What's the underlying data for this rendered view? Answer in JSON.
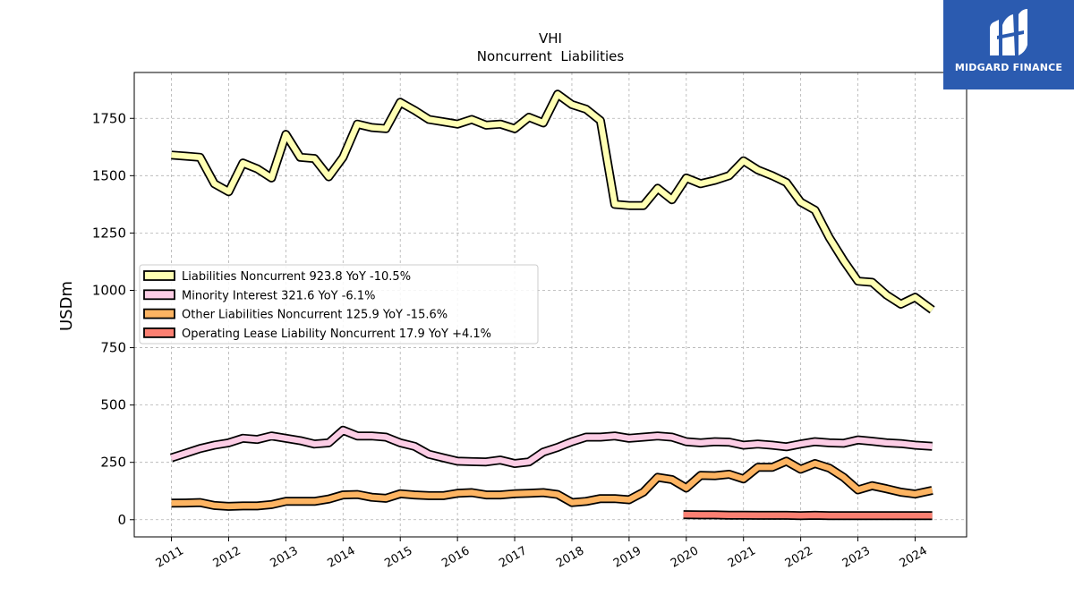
{
  "brand": {
    "name": "MIDGARD FINANCE",
    "background": "#2b5bb0"
  },
  "chart_data": {
    "type": "line",
    "title": "VHI",
    "subtitle": "Noncurrent  Liabilities",
    "xlabel": "",
    "ylabel": "USDm",
    "ylim": [
      -75,
      1950
    ],
    "xlim": [
      2010.35,
      2024.9
    ],
    "yticks": [
      0,
      250,
      500,
      750,
      1000,
      1250,
      1500,
      1750
    ],
    "xticks": [
      2011,
      2012,
      2013,
      2014,
      2015,
      2016,
      2017,
      2018,
      2019,
      2020,
      2021,
      2022,
      2023,
      2024
    ],
    "grid": true,
    "legend_position": "center-left",
    "series": [
      {
        "name": "Liabilities Noncurrent  923.8 YoY -10.5%",
        "color": "#ffffb3",
        "x": [
          2011.0,
          2011.25,
          2011.5,
          2011.75,
          2012.0,
          2012.25,
          2012.5,
          2012.75,
          2013.0,
          2013.25,
          2013.5,
          2013.75,
          2014.0,
          2014.25,
          2014.5,
          2014.75,
          2015.0,
          2015.25,
          2015.5,
          2015.75,
          2016.0,
          2016.25,
          2016.5,
          2016.75,
          2017.0,
          2017.25,
          2017.5,
          2017.75,
          2018.0,
          2018.25,
          2018.5,
          2018.75,
          2019.0,
          2019.25,
          2019.5,
          2019.75,
          2020.0,
          2020.25,
          2020.5,
          2020.75,
          2021.0,
          2021.25,
          2021.5,
          2021.75,
          2022.0,
          2022.25,
          2022.5,
          2022.75,
          2023.0,
          2023.25,
          2023.5,
          2023.75,
          2024.0,
          2024.3
        ],
        "values": [
          1590,
          1585,
          1580,
          1465,
          1430,
          1555,
          1530,
          1490,
          1680,
          1580,
          1575,
          1495,
          1580,
          1725,
          1710,
          1705,
          1820,
          1785,
          1745,
          1735,
          1725,
          1745,
          1720,
          1725,
          1705,
          1755,
          1730,
          1855,
          1810,
          1790,
          1740,
          1375,
          1370,
          1370,
          1445,
          1395,
          1490,
          1465,
          1480,
          1500,
          1565,
          1525,
          1500,
          1470,
          1385,
          1350,
          1230,
          1130,
          1040,
          1035,
          980,
          940,
          970,
          915
        ]
      },
      {
        "name": "Minority Interest  321.6 YoY -6.1%",
        "color": "#fccde5",
        "x": [
          2011.0,
          2011.25,
          2011.5,
          2011.75,
          2012.0,
          2012.25,
          2012.5,
          2012.75,
          2013.0,
          2013.25,
          2013.5,
          2013.75,
          2014.0,
          2014.25,
          2014.5,
          2014.75,
          2015.0,
          2015.25,
          2015.5,
          2015.75,
          2016.0,
          2016.25,
          2016.5,
          2016.75,
          2017.0,
          2017.25,
          2017.5,
          2017.75,
          2018.0,
          2018.25,
          2018.5,
          2018.75,
          2019.0,
          2019.25,
          2019.5,
          2019.75,
          2020.0,
          2020.25,
          2020.5,
          2020.75,
          2021.0,
          2021.25,
          2021.5,
          2021.75,
          2022.0,
          2022.25,
          2022.5,
          2022.75,
          2023.0,
          2023.25,
          2023.5,
          2023.75,
          2024.0,
          2024.3
        ],
        "values": [
          270,
          290,
          310,
          325,
          335,
          355,
          350,
          365,
          355,
          345,
          330,
          335,
          390,
          365,
          365,
          360,
          335,
          320,
          285,
          270,
          255,
          253,
          252,
          260,
          245,
          252,
          295,
          315,
          340,
          360,
          360,
          365,
          355,
          360,
          365,
          360,
          340,
          335,
          340,
          338,
          325,
          330,
          325,
          318,
          330,
          340,
          335,
          333,
          348,
          342,
          335,
          332,
          325,
          320
        ]
      },
      {
        "name": "Other Liabilities Noncurrent  125.9 YoY -15.6%",
        "color": "#fdb462",
        "x": [
          2011.0,
          2011.25,
          2011.5,
          2011.75,
          2012.0,
          2012.25,
          2012.5,
          2012.75,
          2013.0,
          2013.25,
          2013.5,
          2013.75,
          2014.0,
          2014.25,
          2014.5,
          2014.75,
          2015.0,
          2015.25,
          2015.5,
          2015.75,
          2016.0,
          2016.25,
          2016.5,
          2016.75,
          2017.0,
          2017.25,
          2017.5,
          2017.75,
          2018.0,
          2018.25,
          2018.5,
          2018.75,
          2019.0,
          2019.25,
          2019.5,
          2019.75,
          2020.0,
          2020.25,
          2020.5,
          2020.75,
          2021.0,
          2021.25,
          2021.5,
          2021.75,
          2022.0,
          2022.25,
          2022.5,
          2022.75,
          2023.0,
          2023.25,
          2023.5,
          2023.75,
          2024.0,
          2024.3
        ],
        "values": [
          72,
          73,
          75,
          62,
          58,
          60,
          60,
          66,
          80,
          80,
          80,
          90,
          108,
          110,
          98,
          93,
          113,
          108,
          105,
          105,
          115,
          118,
          108,
          108,
          113,
          115,
          118,
          110,
          75,
          80,
          92,
          92,
          87,
          120,
          185,
          175,
          138,
          193,
          192,
          198,
          178,
          228,
          228,
          255,
          220,
          245,
          225,
          185,
          130,
          148,
          135,
          120,
          112,
          128
        ]
      },
      {
        "name": "Operating Lease Liability Noncurrent  17.9 YoY +4.1%",
        "color": "#fb8072",
        "x": [
          2019.95,
          2020.25,
          2020.5,
          2020.75,
          2021.0,
          2021.25,
          2021.5,
          2021.75,
          2022.0,
          2022.25,
          2022.5,
          2022.75,
          2023.0,
          2023.25,
          2023.5,
          2023.75,
          2024.0,
          2024.3
        ],
        "values": [
          22,
          21,
          21,
          20,
          20,
          19,
          19,
          19,
          18,
          19,
          18,
          18,
          18,
          18,
          18,
          18,
          18,
          18
        ]
      }
    ]
  }
}
